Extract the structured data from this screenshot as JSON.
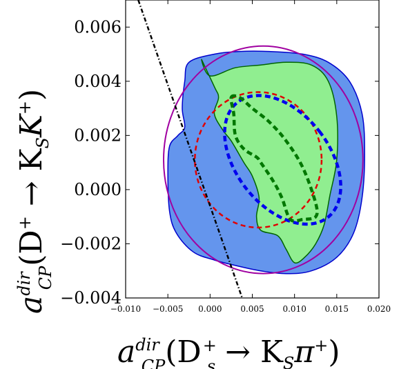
{
  "chart_data": {
    "type": "scatter",
    "xlim": [
      -0.01,
      0.02
    ],
    "ylim": [
      -0.004,
      0.007
    ],
    "x_ticks": [
      "−0.010",
      "−0.005",
      "0.000",
      "0.005",
      "0.010",
      "0.015",
      "0.020"
    ],
    "x_tick_values": [
      -0.01,
      -0.005,
      0.0,
      0.005,
      0.01,
      0.015,
      0.02
    ],
    "y_ticks": [
      "0.006",
      "0.004",
      "0.002",
      "0.000",
      "−0.002",
      "−0.004"
    ],
    "y_tick_values": [
      0.006,
      0.004,
      0.002,
      0.0,
      -0.002,
      -0.004
    ],
    "xlabel": {
      "base": "a",
      "sup": "dir",
      "sub": "CP",
      "arg_open": "(D",
      "arg_sub": "s",
      "arg_sup": "+",
      "arrow": " → K",
      "arg2_sub": "S",
      "tail": "π",
      "tail_sup": "+",
      "close": ")"
    },
    "ylabel": {
      "base": "a",
      "sup": "dir",
      "sub": "CP",
      "arg_open": "(D",
      "arg_sup": "+",
      "arrow": " → K",
      "arg2_sub": "S",
      "tail": "K",
      "tail_sup": "+",
      "close": ")"
    },
    "grid": false,
    "colors": {
      "outer_region": "#6495ED",
      "inner_region": "#90EE90",
      "region_edge_blue": "#0000CC",
      "region_edge_green": "#006400",
      "ellipse_magenta": "#A000A0",
      "ellipse_red": "#E00000",
      "ellipse_blue": "#0000EE",
      "contour_green": "#007700",
      "line_black": "#000000"
    },
    "ellipses": [
      {
        "name": "magenta",
        "cx": 0.0063,
        "cy": 0.0011,
        "rx": 0.0118,
        "ry": 0.0042
      },
      {
        "name": "red",
        "cx": 0.0057,
        "cy": 0.0011,
        "rx": 0.0075,
        "ry": 0.0025
      },
      {
        "name": "blue",
        "cx": 0.0086,
        "cy": 0.0011,
        "rx": 0.0055,
        "ry": 0.0027,
        "angle": -38
      }
    ],
    "blue_region": [
      [
        -0.0025,
        0.0047
      ],
      [
        0.0005,
        0.005
      ],
      [
        0.0035,
        0.0051
      ],
      [
        0.007,
        0.0051
      ],
      [
        0.011,
        0.005
      ],
      [
        0.014,
        0.0047
      ],
      [
        0.0165,
        0.004
      ],
      [
        0.018,
        0.0028
      ],
      [
        0.0183,
        0.0013
      ],
      [
        0.018,
        -0.0003
      ],
      [
        0.017,
        -0.0016
      ],
      [
        0.015,
        -0.0025
      ],
      [
        0.012,
        -0.003
      ],
      [
        0.009,
        -0.0031
      ],
      [
        0.006,
        -0.003
      ],
      [
        0.003,
        -0.0028
      ],
      [
        0.0005,
        -0.0026
      ],
      [
        -0.002,
        -0.0023
      ],
      [
        -0.004,
        -0.0016
      ],
      [
        -0.0048,
        -0.0008
      ],
      [
        -0.005,
        0.0006
      ],
      [
        -0.0048,
        0.0016
      ],
      [
        -0.0038,
        0.002
      ],
      [
        -0.003,
        0.0023
      ],
      [
        -0.0033,
        0.003
      ],
      [
        -0.003,
        0.004
      ]
    ],
    "green_region": [
      [
        -0.001,
        0.0048
      ],
      [
        0.0,
        0.0042
      ],
      [
        0.003,
        0.0045
      ],
      [
        0.006,
        0.0046
      ],
      [
        0.009,
        0.0047
      ],
      [
        0.012,
        0.0046
      ],
      [
        0.014,
        0.004
      ],
      [
        0.015,
        0.0027
      ],
      [
        0.015,
        0.0011
      ],
      [
        0.0142,
        -0.0002
      ],
      [
        0.0135,
        -0.0013
      ],
      [
        0.0125,
        -0.002
      ],
      [
        0.0112,
        -0.0025
      ],
      [
        0.01,
        -0.0027
      ],
      [
        0.009,
        -0.0022
      ],
      [
        0.008,
        -0.0017
      ],
      [
        0.006,
        -0.0015
      ],
      [
        0.0055,
        -0.001
      ],
      [
        0.0058,
        -0.0003
      ],
      [
        0.005,
        0.0005
      ],
      [
        0.004,
        0.001
      ],
      [
        0.0025,
        0.0018
      ],
      [
        0.0015,
        0.0022
      ],
      [
        0.0005,
        0.0028
      ],
      [
        0.001,
        0.0034
      ],
      [
        0.0005,
        0.0038
      ]
    ],
    "green_dashed_contour": [
      [
        0.0025,
        0.0034
      ],
      [
        0.0035,
        0.0034
      ],
      [
        0.005,
        0.003
      ],
      [
        0.007,
        0.0025
      ],
      [
        0.009,
        0.0018
      ],
      [
        0.011,
        0.0008
      ],
      [
        0.0125,
        -0.0005
      ],
      [
        0.0125,
        -0.001
      ],
      [
        0.011,
        -0.0011
      ],
      [
        0.0095,
        -0.0011
      ],
      [
        0.0085,
        -0.0003
      ],
      [
        0.0075,
        0.0003
      ],
      [
        0.006,
        0.001
      ],
      [
        0.0055,
        0.0012
      ],
      [
        0.004,
        0.0015
      ],
      [
        0.003,
        0.002
      ],
      [
        0.0028,
        0.0028
      ]
    ],
    "black_line": [
      [
        -0.0085,
        0.007
      ],
      [
        0.0038,
        -0.004
      ]
    ]
  }
}
